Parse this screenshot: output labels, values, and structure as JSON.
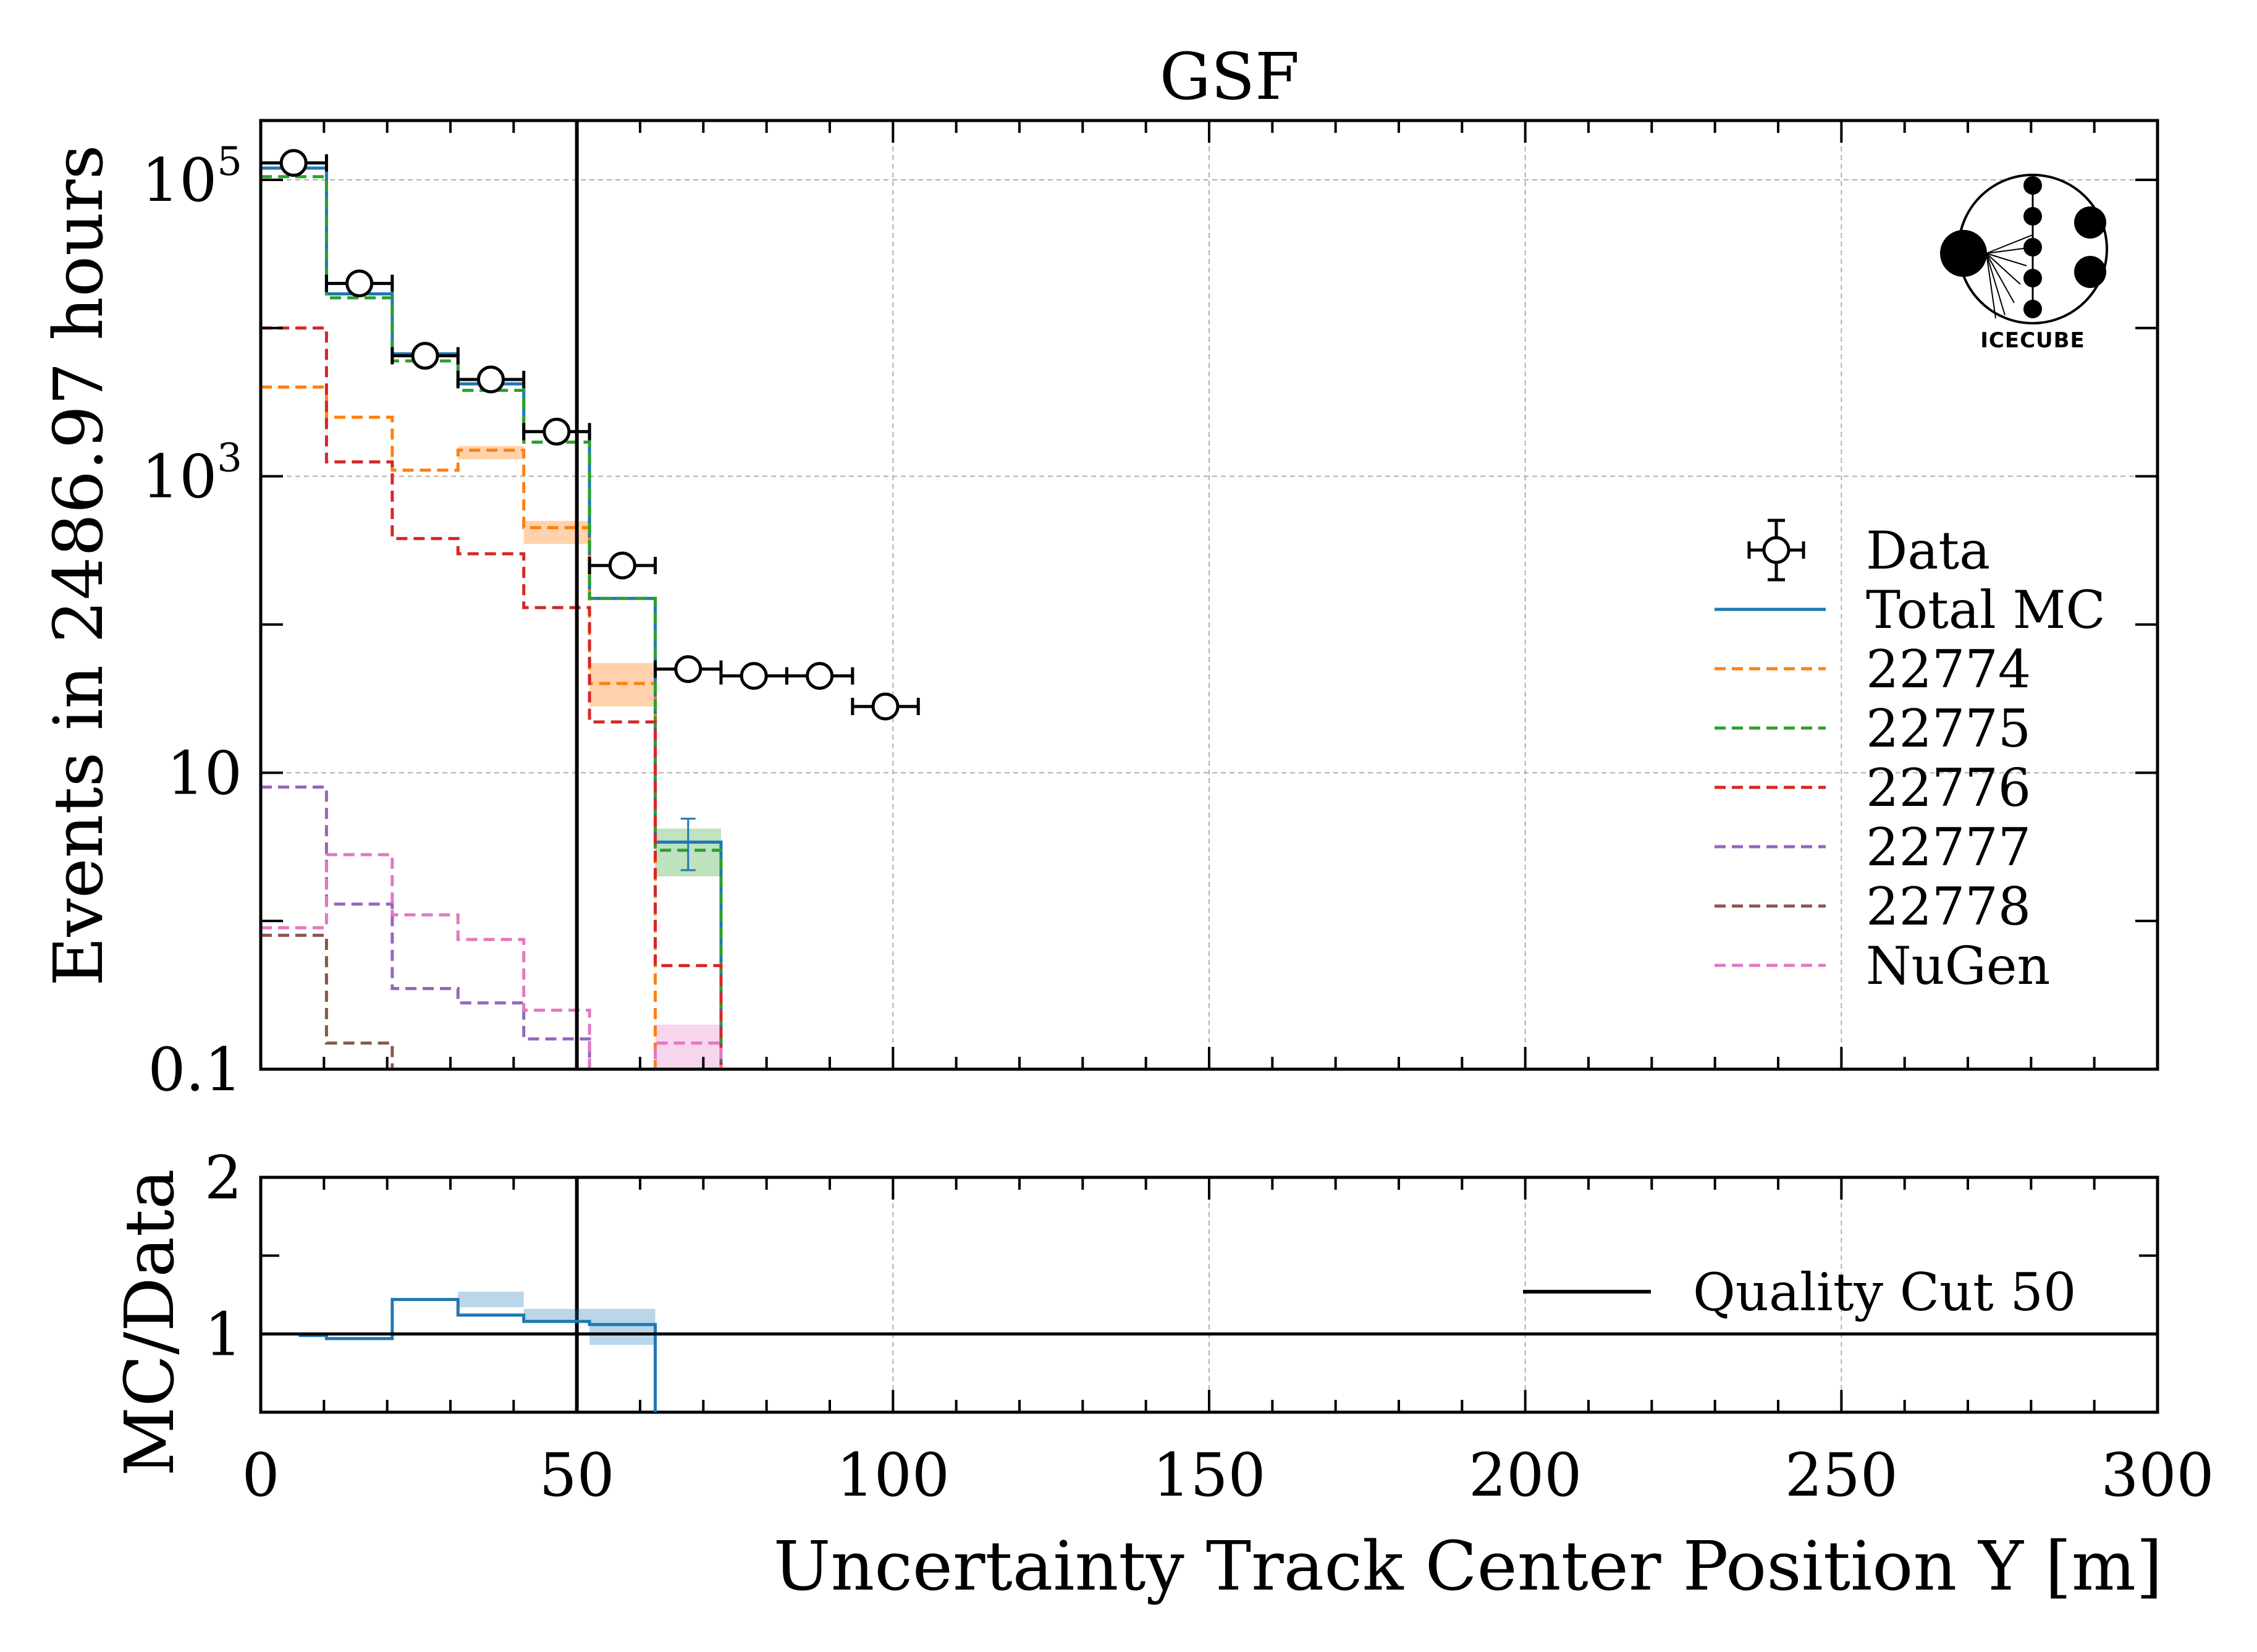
{
  "chart_data": [
    {
      "type": "step",
      "title": "GSF",
      "ylabel": "Events in 2486.97 hours",
      "yscale": "log",
      "ylim": [
        0.1,
        300000
      ],
      "xlim": [
        0,
        300
      ],
      "yticks": [
        {
          "value": 100000,
          "label": "10",
          "exp": "5"
        },
        {
          "value": 1000,
          "label": "10",
          "exp": "3"
        },
        {
          "value": 10,
          "label": "10",
          "exp": ""
        },
        {
          "value": 0.1,
          "label": "0.1",
          "exp": ""
        }
      ],
      "grid": true,
      "legend_position": "center-right",
      "bin_edges": [
        0,
        10.4,
        20.8,
        31.2,
        41.6,
        52,
        62.4,
        72.8
      ],
      "data": {
        "name": "Data",
        "x": [
          5.2,
          15.6,
          26,
          36.4,
          46.8,
          57.2,
          67.6,
          78,
          88.4,
          98.8
        ],
        "xerr": 5.2,
        "y": [
          130000,
          20000,
          6500,
          4500,
          2000,
          250,
          50,
          45,
          45,
          28
        ]
      },
      "series": [
        {
          "name": "Total MC",
          "color": "#1f77b4",
          "style": "solid",
          "values": [
            120000,
            17000,
            6700,
            4200,
            2000,
            150,
            3.4,
            0.1
          ]
        },
        {
          "name": "22774",
          "color": "#ff7f0e",
          "style": "dashed",
          "values": [
            4000,
            2500,
            1100,
            1500,
            450,
            40,
            0.1,
            0.1
          ]
        },
        {
          "name": "22775",
          "color": "#2ca02c",
          "style": "dashed",
          "values": [
            105000,
            16000,
            6000,
            3800,
            1700,
            150,
            3.0,
            0.1
          ]
        },
        {
          "name": "22776",
          "color": "#d62728",
          "style": "dashed",
          "values": [
            10000,
            1250,
            380,
            300,
            130,
            22,
            0.5,
            0.1
          ]
        },
        {
          "name": "22777",
          "color": "#9467bd",
          "style": "dashed",
          "values": [
            8,
            1.3,
            0.35,
            0.28,
            0.16,
            0.08,
            0.1,
            0.1
          ]
        },
        {
          "name": "22778",
          "color": "#8c564b",
          "style": "dashed",
          "values": [
            0.8,
            0.15,
            0.1,
            0.1,
            0.1,
            0.1,
            0.1,
            0.1
          ]
        },
        {
          "name": "NuGen",
          "color": "#e377c2",
          "style": "dashed",
          "values": [
            0.9,
            2.8,
            1.1,
            0.75,
            0.25,
            0.06,
            0.15,
            0.1
          ]
        }
      ],
      "vertical_line": {
        "x": 50,
        "name": "Quality Cut 50"
      }
    },
    {
      "type": "step",
      "ylabel": "MC/Data",
      "xlabel": "Uncertainty Track Center Position Y [m]",
      "xlim": [
        0,
        300
      ],
      "ylim": [
        0.5,
        2
      ],
      "yticks": [
        1,
        2
      ],
      "xticks": [
        0,
        50,
        100,
        150,
        200,
        250,
        300
      ],
      "grid": true,
      "legend_position": "center-right",
      "series": [
        {
          "name": "MC/Data",
          "color": "#1f77b4",
          "x_edges": [
            6,
            10.4,
            20.8,
            31.2,
            41.6,
            52,
            62.4
          ],
          "values": [
            0.99,
            0.97,
            1.22,
            1.12,
            1.08,
            1.06
          ]
        }
      ],
      "reference_line": {
        "y": 1
      },
      "legend": [
        {
          "name": "Quality Cut 50",
          "color": "#000000"
        }
      ]
    }
  ],
  "logo": {
    "text": "IceCube"
  }
}
